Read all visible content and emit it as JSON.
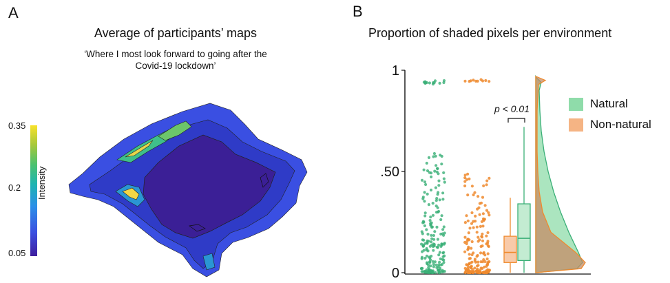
{
  "panel_a": {
    "letter": "A",
    "title": "Average of participants’ maps",
    "subtitle_line1": "‘Where I most look forward to going after the",
    "subtitle_line2": "Covid-19 lockdown’",
    "colorbar": {
      "label": "Intensity",
      "ticks": [
        "0.35",
        "0.2",
        "0.05"
      ],
      "range": [
        0.05,
        0.35
      ]
    }
  },
  "panel_b": {
    "letter": "B",
    "title": "Proportion of shaded pixels per environment",
    "annotation": "p < 0.01",
    "legend": [
      {
        "label": "Natural",
        "color": "#8fdcaa"
      },
      {
        "label": "Non-natural",
        "color": "#f5b484"
      }
    ]
  },
  "chart_data": {
    "type": "boxplot-raincloud",
    "title": "Proportion of shaded pixels per environment",
    "ylim": [
      0,
      1
    ],
    "yticks": [
      {
        "value": 1,
        "label": "1"
      },
      {
        "value": 0.5,
        "label": ".50"
      },
      {
        "value": 0,
        "label": "0"
      }
    ],
    "series": [
      {
        "name": "Natural",
        "color": "#3aaf77",
        "box": {
          "q1": 0.06,
          "median": 0.17,
          "q3": 0.34,
          "whisker_low": 0.0,
          "whisker_high": 0.72
        }
      },
      {
        "name": "Non-natural",
        "color": "#ef8a2e",
        "box": {
          "q1": 0.05,
          "median": 0.1,
          "q3": 0.18,
          "whisker_low": 0.0,
          "whisker_high": 0.37
        }
      }
    ],
    "annotation": "p < 0.01"
  }
}
